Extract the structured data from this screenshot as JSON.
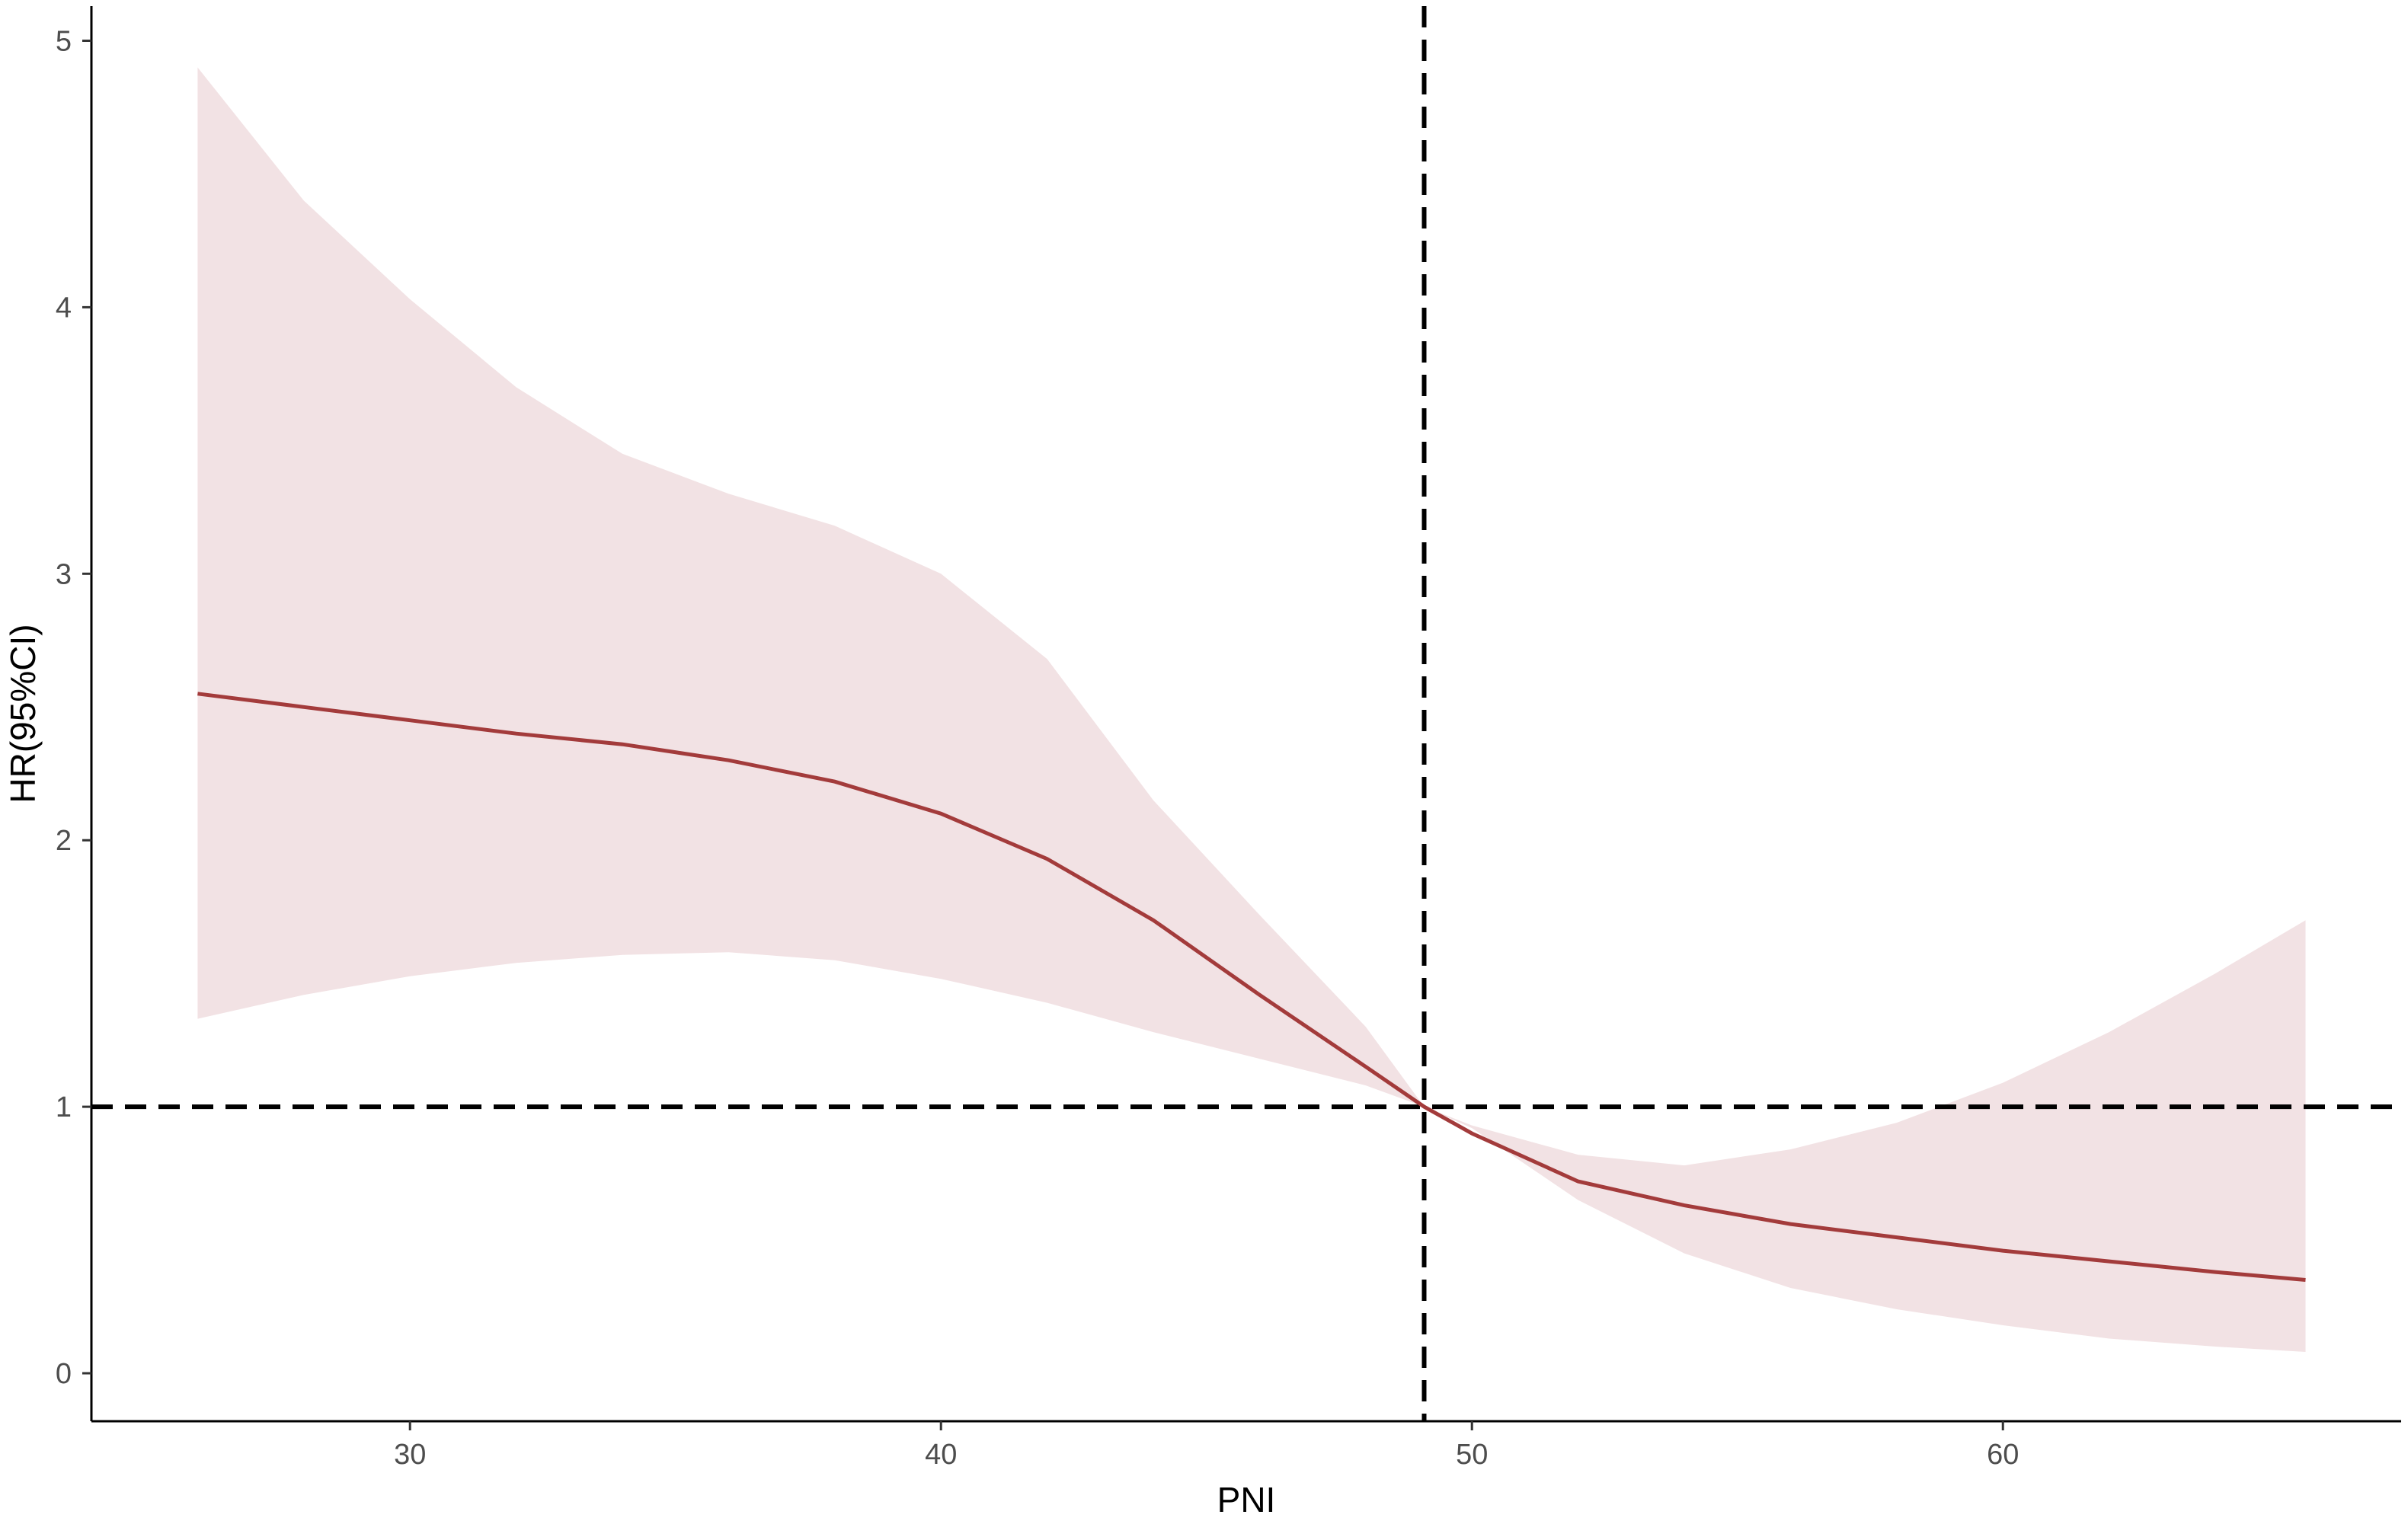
{
  "chart_data": {
    "type": "line",
    "title": "",
    "xlabel": "PNI",
    "ylabel": "HR(95%CI)",
    "xlim": [
      24,
      67.5
    ],
    "ylim": [
      -0.18,
      5.13
    ],
    "x_ticks": [
      30,
      40,
      50,
      60
    ],
    "x_tick_labels": [
      "30",
      "40",
      "50",
      "60"
    ],
    "y_ticks": [
      0,
      1,
      2,
      3,
      4,
      5
    ],
    "y_tick_labels": [
      "0",
      "1",
      "2",
      "3",
      "4",
      "5"
    ],
    "grid": false,
    "reference_lines": {
      "vertical_x": 49.1,
      "horizontal_y": 1
    },
    "series": [
      {
        "x": [
          26,
          28,
          30,
          32,
          34,
          36,
          38,
          40,
          42,
          44,
          46,
          48,
          49.1,
          50,
          52,
          54,
          56,
          58,
          60,
          62,
          64,
          65.7
        ],
        "hr": [
          2.55,
          2.5,
          2.45,
          2.4,
          2.36,
          2.3,
          2.22,
          2.1,
          1.93,
          1.7,
          1.42,
          1.15,
          1.0,
          0.9,
          0.72,
          0.63,
          0.56,
          0.51,
          0.46,
          0.42,
          0.38,
          0.35
        ],
        "lower": [
          1.33,
          1.42,
          1.49,
          1.54,
          1.57,
          1.58,
          1.55,
          1.48,
          1.39,
          1.28,
          1.18,
          1.08,
          1.0,
          0.92,
          0.65,
          0.45,
          0.32,
          0.24,
          0.18,
          0.13,
          0.1,
          0.08
        ],
        "upper": [
          4.9,
          4.4,
          4.03,
          3.7,
          3.45,
          3.3,
          3.18,
          3.0,
          2.68,
          2.15,
          1.72,
          1.3,
          1.0,
          0.93,
          0.82,
          0.78,
          0.84,
          0.94,
          1.09,
          1.28,
          1.5,
          1.7
        ]
      }
    ],
    "colors": {
      "line": "#a33b3b",
      "ci_band": "#f2e2e4",
      "reference": "#000000",
      "axis": "#000000"
    }
  }
}
